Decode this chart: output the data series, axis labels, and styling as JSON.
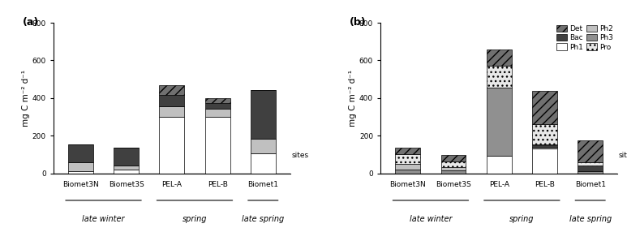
{
  "sites": [
    "Biomet3N",
    "Biomet3S",
    "PEL-A",
    "PEL-B",
    "Biomet1"
  ],
  "season_groups": [
    {
      "label": "late winter",
      "sites": [
        "Biomet3N",
        "Biomet3S"
      ]
    },
    {
      "label": "spring",
      "sites": [
        "PEL-A",
        "PEL-B"
      ]
    },
    {
      "label": "late spring",
      "sites": [
        "Biomet1"
      ]
    }
  ],
  "panel_a": {
    "ylabel": "mg C m⁻² d⁻¹",
    "ylim": [
      0,
      800
    ],
    "yticks": [
      0,
      200,
      400,
      600,
      800
    ],
    "components": [
      "Ph1",
      "Ph2",
      "Bac",
      "Det"
    ],
    "data": {
      "Biomet3N": {
        "Ph1": 10,
        "Ph2": 48,
        "Bac": 95,
        "Det": 0
      },
      "Biomet3S": {
        "Ph1": 20,
        "Ph2": 22,
        "Bac": 95,
        "Det": 0
      },
      "PEL-A": {
        "Ph1": 298,
        "Ph2": 58,
        "Bac": 60,
        "Det": 52
      },
      "PEL-B": {
        "Ph1": 300,
        "Ph2": 45,
        "Bac": 30,
        "Det": 25
      },
      "Biomet1": {
        "Ph1": 105,
        "Ph2": 80,
        "Bac": 258,
        "Det": 0
      }
    }
  },
  "panel_b": {
    "ylabel": "mg C m⁻² d⁻¹",
    "ylim": [
      0,
      800
    ],
    "yticks": [
      0,
      200,
      400,
      600,
      800
    ],
    "components": [
      "Ph1",
      "Ph3",
      "Bac",
      "Ph2",
      "Pro",
      "Det"
    ],
    "data": {
      "Biomet3N": {
        "Ph1": 0,
        "Ph3": 20,
        "Bac": 0,
        "Ph2": 30,
        "Pro": 50,
        "Det": 35
      },
      "Biomet3S": {
        "Ph1": 0,
        "Ph3": 15,
        "Bac": 0,
        "Ph2": 18,
        "Pro": 30,
        "Det": 33
      },
      "PEL-A": {
        "Ph1": 95,
        "Ph3": 360,
        "Bac": 0,
        "Ph2": 0,
        "Pro": 115,
        "Det": 90
      },
      "PEL-B": {
        "Ph1": 130,
        "Ph3": 12,
        "Bac": 5,
        "Ph2": 5,
        "Pro": 110,
        "Det": 175
      },
      "Biomet1": {
        "Ph1": 0,
        "Ph3": 12,
        "Bac": 28,
        "Ph2": 0,
        "Pro": 20,
        "Det": 115
      }
    }
  }
}
